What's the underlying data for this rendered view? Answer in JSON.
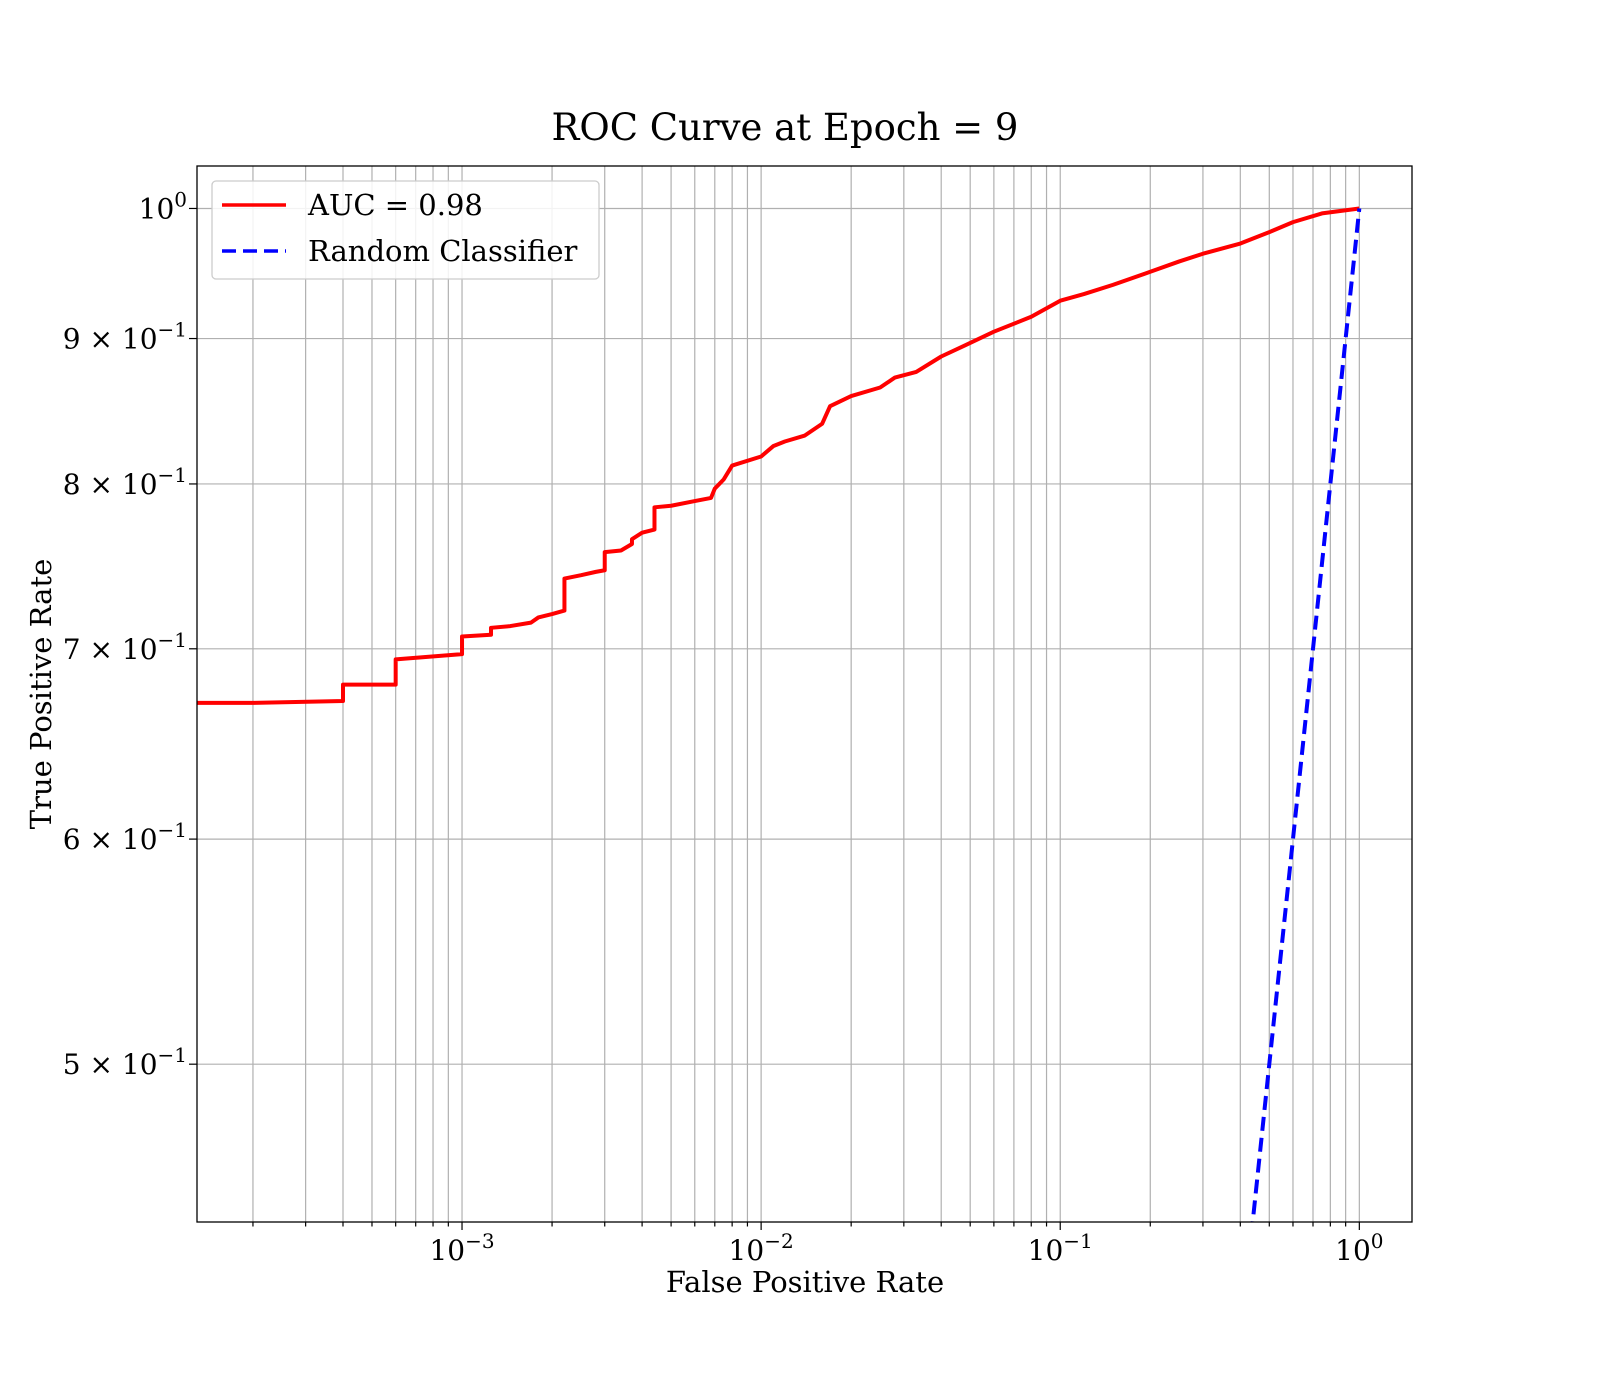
{
  "chart_data": {
    "type": "line",
    "title": "ROC Curve at Epoch = 9",
    "xlabel": "False Positive Rate",
    "ylabel": "True Positive Rate",
    "xscale": "log",
    "yscale": "log",
    "xlim": [
      0.00013,
      1.5
    ],
    "ylim": [
      0.44,
      1.035
    ],
    "grid": "both major and minor",
    "legend_position": "top-left",
    "x_ticks": [
      {
        "value": 0.001,
        "base": "10",
        "exp": "−3"
      },
      {
        "value": 0.01,
        "base": "10",
        "exp": "−2"
      },
      {
        "value": 0.1,
        "base": "10",
        "exp": "−1"
      },
      {
        "value": 1,
        "base": "10",
        "exp": "0"
      }
    ],
    "y_ticks": [
      {
        "value": 1.0,
        "mant": "",
        "base": "10",
        "exp": "0"
      },
      {
        "value": 0.9,
        "mant": "9 × ",
        "base": "10",
        "exp": "−1"
      },
      {
        "value": 0.8,
        "mant": "8 × ",
        "base": "10",
        "exp": "−1"
      },
      {
        "value": 0.7,
        "mant": "7 × ",
        "base": "10",
        "exp": "−1"
      },
      {
        "value": 0.6,
        "mant": "6 × ",
        "base": "10",
        "exp": "−1"
      },
      {
        "value": 0.5,
        "mant": "5 × ",
        "base": "10",
        "exp": "−1"
      }
    ],
    "series": [
      {
        "name": "AUC = 0.98",
        "color": "#ff0000",
        "style": "solid",
        "points": [
          [
            0.0001,
            0.67
          ],
          [
            0.0002,
            0.67
          ],
          [
            0.0004,
            0.671
          ],
          [
            0.0004,
            0.68
          ],
          [
            0.0006,
            0.68
          ],
          [
            0.0006,
            0.694
          ],
          [
            0.001,
            0.697
          ],
          [
            0.001,
            0.707
          ],
          [
            0.00125,
            0.708
          ],
          [
            0.00125,
            0.712
          ],
          [
            0.00145,
            0.713
          ],
          [
            0.0017,
            0.715
          ],
          [
            0.0018,
            0.718
          ],
          [
            0.002,
            0.72
          ],
          [
            0.0022,
            0.722
          ],
          [
            0.0022,
            0.741
          ],
          [
            0.0025,
            0.743
          ],
          [
            0.0028,
            0.745
          ],
          [
            0.003,
            0.746
          ],
          [
            0.003,
            0.757
          ],
          [
            0.0034,
            0.758
          ],
          [
            0.0037,
            0.762
          ],
          [
            0.0037,
            0.765
          ],
          [
            0.004,
            0.769
          ],
          [
            0.0044,
            0.771
          ],
          [
            0.0044,
            0.785
          ],
          [
            0.005,
            0.786
          ],
          [
            0.006,
            0.789
          ],
          [
            0.0068,
            0.791
          ],
          [
            0.007,
            0.797
          ],
          [
            0.0075,
            0.803
          ],
          [
            0.008,
            0.812
          ],
          [
            0.01,
            0.818
          ],
          [
            0.011,
            0.825
          ],
          [
            0.012,
            0.828
          ],
          [
            0.014,
            0.832
          ],
          [
            0.016,
            0.84
          ],
          [
            0.017,
            0.852
          ],
          [
            0.02,
            0.859
          ],
          [
            0.025,
            0.865
          ],
          [
            0.028,
            0.872
          ],
          [
            0.033,
            0.876
          ],
          [
            0.04,
            0.887
          ],
          [
            0.048,
            0.895
          ],
          [
            0.06,
            0.905
          ],
          [
            0.08,
            0.916
          ],
          [
            0.1,
            0.928
          ],
          [
            0.12,
            0.933
          ],
          [
            0.15,
            0.94
          ],
          [
            0.2,
            0.95
          ],
          [
            0.25,
            0.958
          ],
          [
            0.3,
            0.964
          ],
          [
            0.4,
            0.972
          ],
          [
            0.5,
            0.981
          ],
          [
            0.6,
            0.989
          ],
          [
            0.75,
            0.996
          ],
          [
            1.0,
            1.0
          ]
        ]
      },
      {
        "name": "Random Classifier",
        "color": "#0000ff",
        "style": "dashed",
        "points": [
          [
            0.4,
            0.4
          ],
          [
            0.5,
            0.5
          ],
          [
            0.6,
            0.6
          ],
          [
            0.7,
            0.7
          ],
          [
            0.8,
            0.8
          ],
          [
            0.9,
            0.9
          ],
          [
            1.0,
            1.0
          ]
        ]
      }
    ]
  }
}
